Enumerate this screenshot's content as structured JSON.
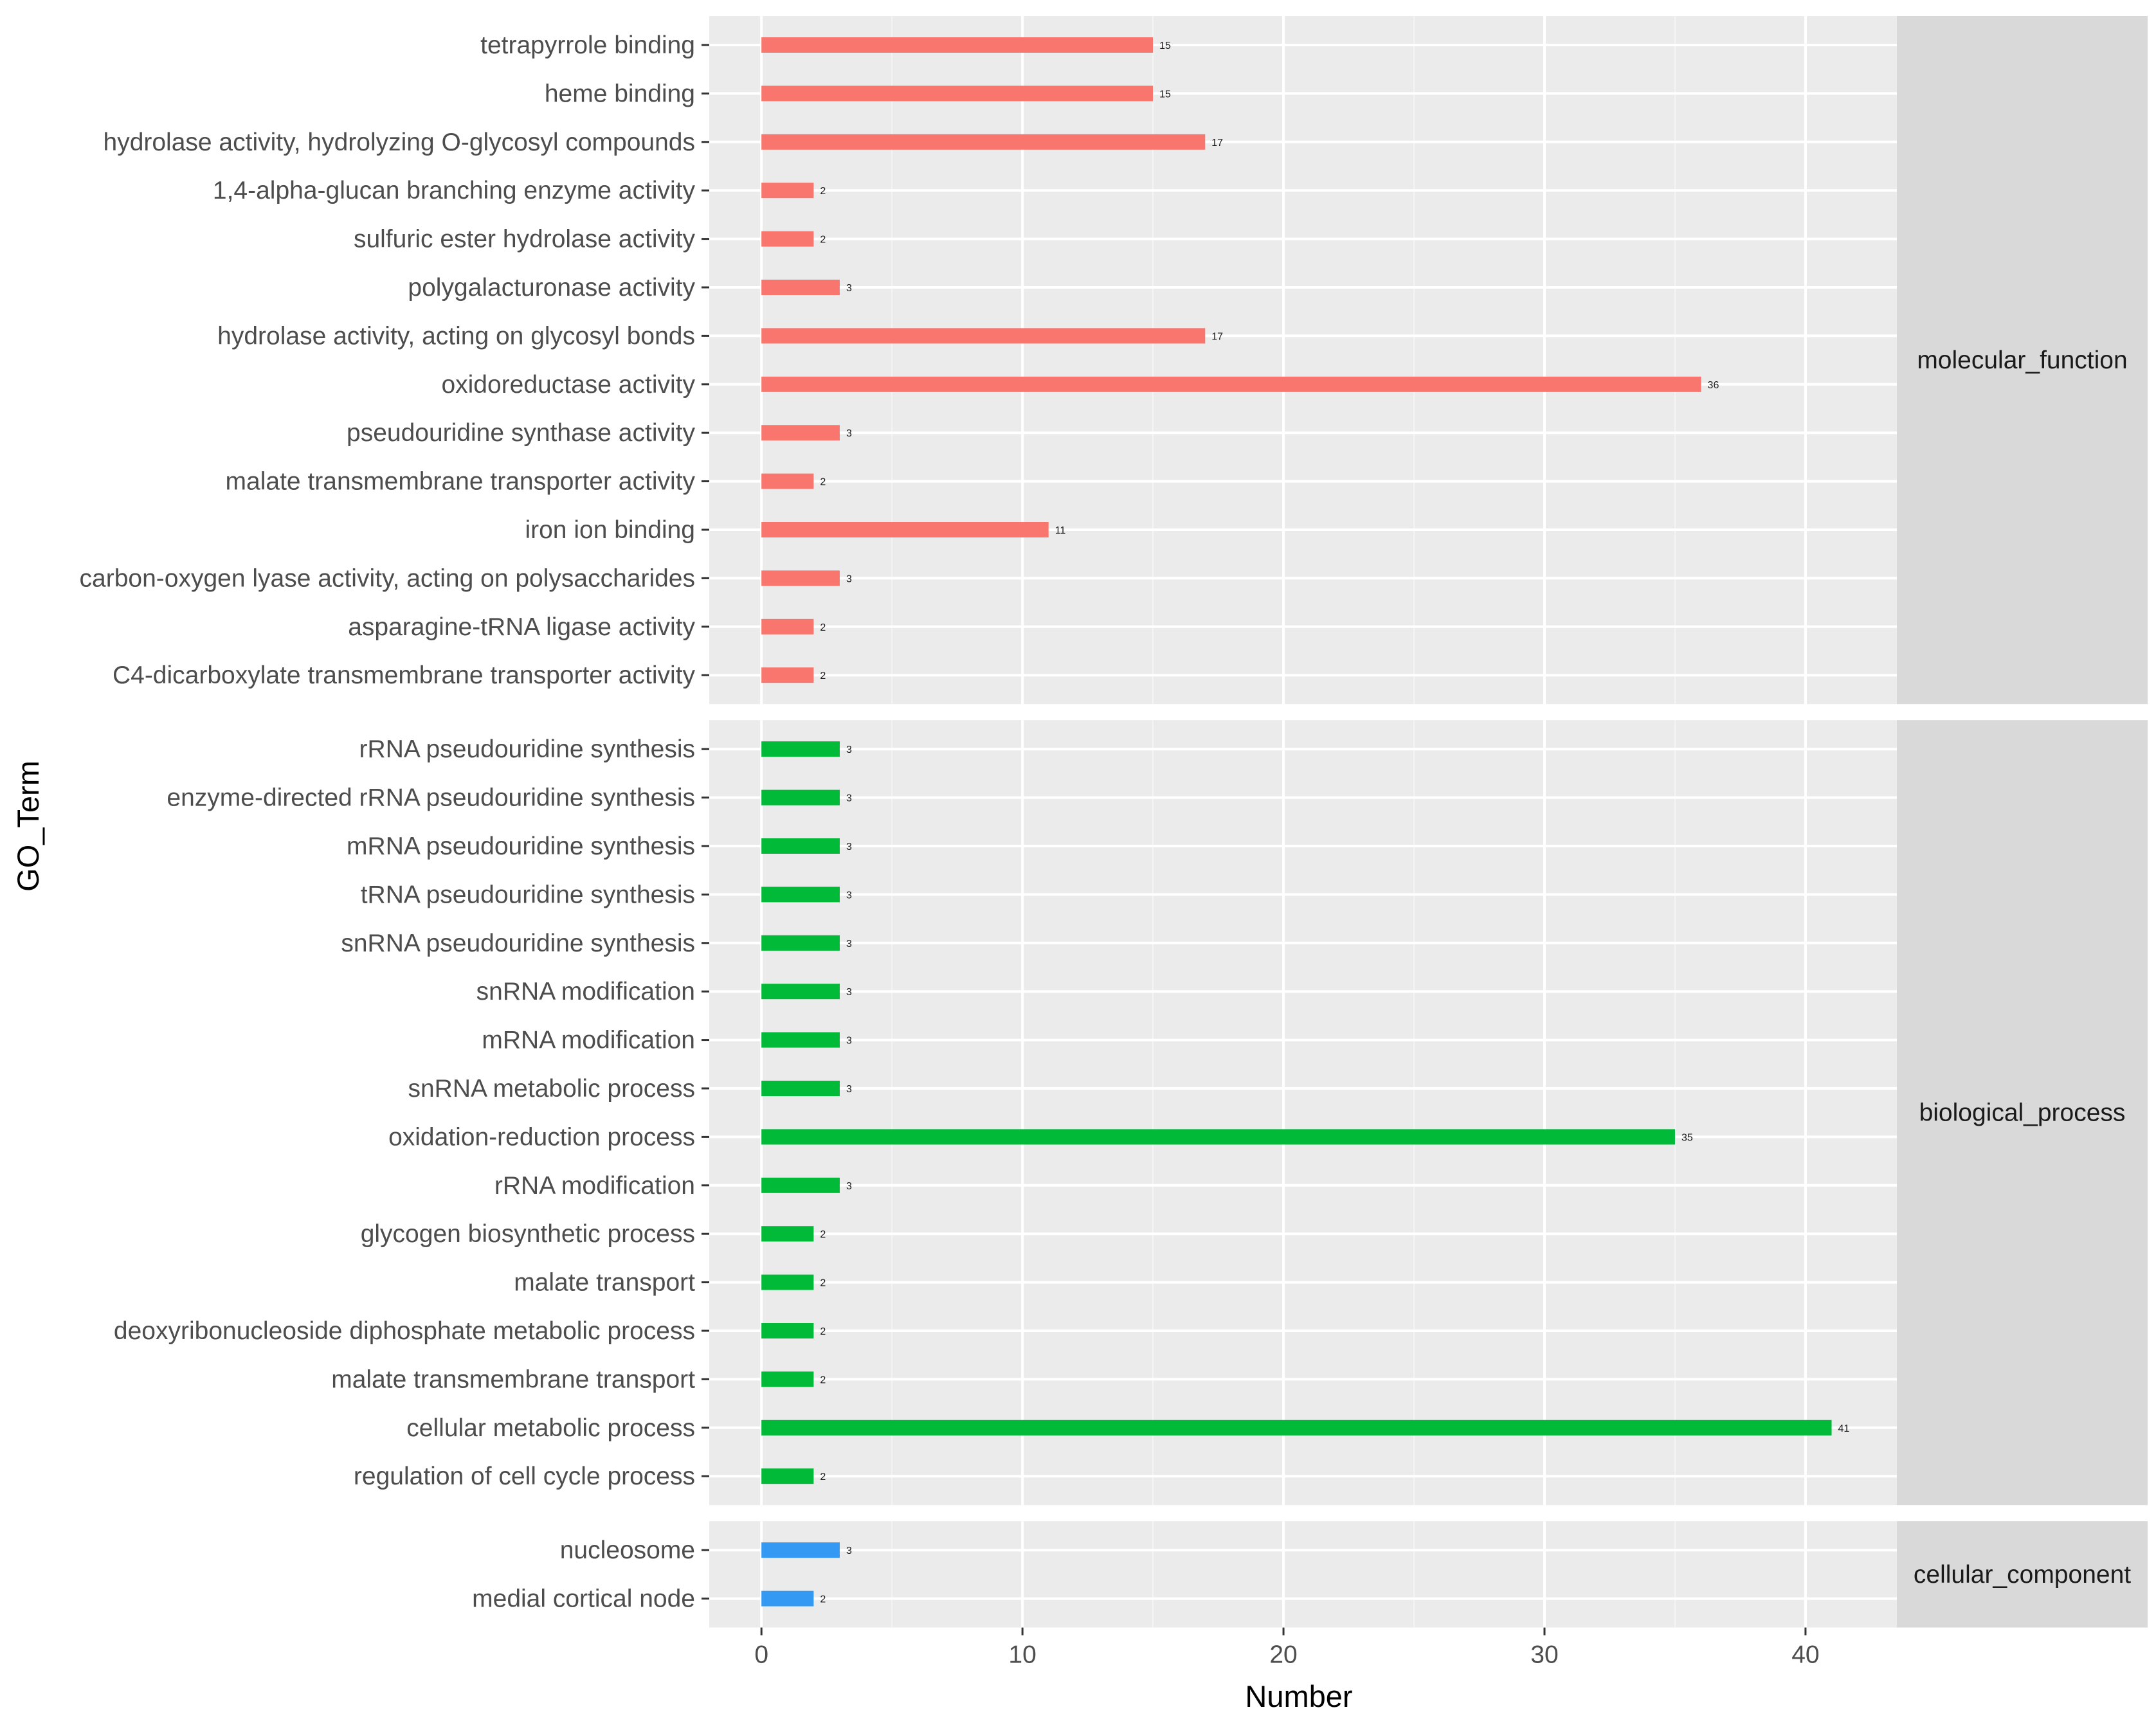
{
  "chart_data": {
    "type": "bar",
    "orientation": "horizontal",
    "xlabel": "Number",
    "ylabel": "GO_Term",
    "xlim": [
      -2,
      43.5
    ],
    "xticks": [
      0,
      10,
      20,
      30,
      40
    ],
    "grid": true,
    "legend": "none",
    "facets": [
      {
        "name": "molecular_function",
        "color": "#F8766D",
        "categories": [
          "tetrapyrrole binding",
          "heme binding",
          "hydrolase activity, hydrolyzing O-glycosyl compounds",
          "1,4-alpha-glucan branching enzyme activity",
          "sulfuric ester hydrolase activity",
          "polygalacturonase activity",
          "hydrolase activity, acting on glycosyl bonds",
          "oxidoreductase activity",
          "pseudouridine synthase activity",
          "malate transmembrane transporter activity",
          "iron ion binding",
          "carbon-oxygen lyase activity, acting on polysaccharides",
          "asparagine-tRNA ligase activity",
          "C4-dicarboxylate transmembrane transporter activity"
        ],
        "values": [
          15,
          15,
          17,
          2,
          2,
          3,
          17,
          36,
          3,
          2,
          11,
          3,
          2,
          2
        ]
      },
      {
        "name": "biological_process",
        "color": "#00BA38",
        "categories": [
          "rRNA pseudouridine synthesis",
          "enzyme-directed rRNA pseudouridine synthesis",
          "mRNA pseudouridine synthesis",
          "tRNA pseudouridine synthesis",
          "snRNA pseudouridine synthesis",
          "snRNA modification",
          "mRNA modification",
          "snRNA metabolic process",
          "oxidation-reduction process",
          "rRNA modification",
          "glycogen biosynthetic process",
          "malate transport",
          "deoxyribonucleoside diphosphate metabolic process",
          "malate transmembrane transport",
          "cellular metabolic process",
          "regulation of cell cycle process"
        ],
        "values": [
          3,
          3,
          3,
          3,
          3,
          3,
          3,
          3,
          35,
          3,
          2,
          2,
          2,
          2,
          41,
          2
        ]
      },
      {
        "name": "cellular_component",
        "color": "#3399F3",
        "categories": [
          "nucleosome",
          "medial cortical node"
        ],
        "values": [
          3,
          2
        ]
      }
    ]
  }
}
